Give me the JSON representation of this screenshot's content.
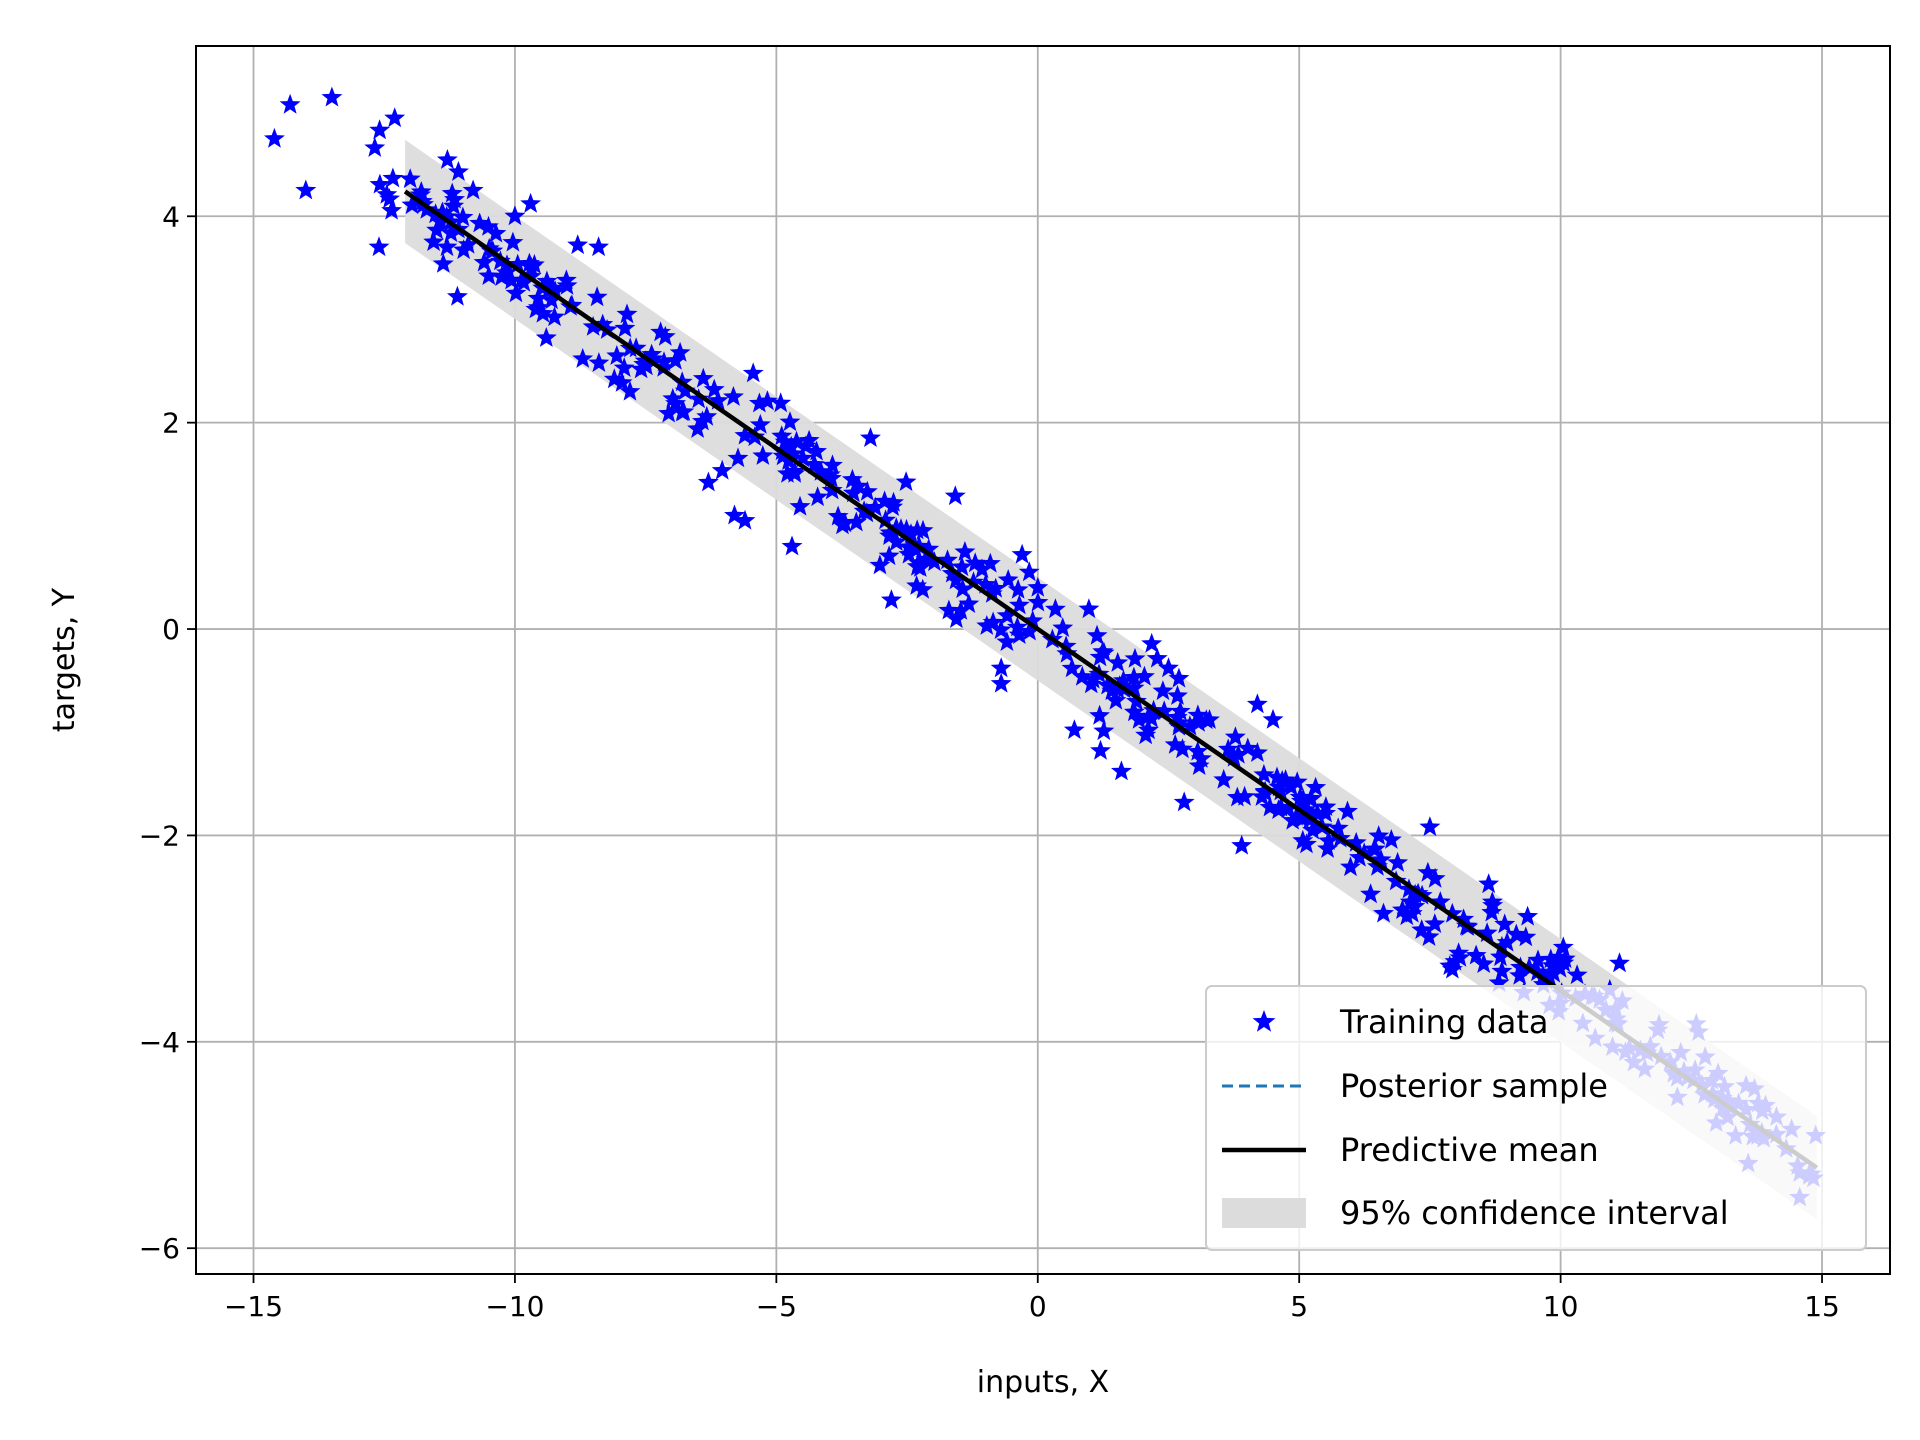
{
  "chart_data": {
    "type": "scatter",
    "title": "",
    "xlabel": "inputs, X",
    "ylabel": "targets, Y",
    "xlim": [
      -16.1,
      16.3
    ],
    "ylim": [
      -6.25,
      5.65
    ],
    "xticks": [
      -15,
      -10,
      -5,
      0,
      5,
      10,
      15
    ],
    "yticks": [
      -6,
      -4,
      -2,
      0,
      2,
      4
    ],
    "xtick_labels": [
      "−15",
      "−10",
      "−5",
      "0",
      "5",
      "10",
      "15"
    ],
    "ytick_labels": [
      "−6",
      "−4",
      "−2",
      "0",
      "2",
      "4"
    ],
    "grid": true,
    "legend_position": "lower-right",
    "colors": {
      "training": "#0000ff",
      "posterior": "#1f77b4",
      "mean": "#000000",
      "interval": "#dcdcdc",
      "grid": "#b0b0b0"
    },
    "series": [
      {
        "name": "Training data",
        "type": "scatter",
        "marker": "star",
        "cluster_points": [
          [
            -14.6,
            4.75
          ],
          [
            -14.3,
            5.08
          ],
          [
            -14.0,
            4.25
          ],
          [
            -13.5,
            5.15
          ],
          [
            -12.3,
            4.95
          ],
          [
            -12.6,
            3.7
          ],
          [
            -11.3,
            3.7
          ],
          [
            -11.1,
            3.22
          ],
          [
            -10.5,
            3.42
          ],
          [
            -9.4,
            2.82
          ],
          [
            -8.1,
            2.42
          ],
          [
            -7.8,
            2.3
          ],
          [
            -6.8,
            2.1
          ],
          [
            -6.3,
            1.42
          ],
          [
            -5.8,
            1.1
          ],
          [
            -5.6,
            1.05
          ],
          [
            -4.7,
            0.8
          ],
          [
            -3.2,
            1.85
          ],
          [
            -2.8,
            0.28
          ],
          [
            -2.2,
            0.38
          ],
          [
            -1.7,
            0.18
          ],
          [
            -0.7,
            -0.38
          ],
          [
            -0.7,
            -0.53
          ],
          [
            -0.3,
            0.72
          ],
          [
            0.7,
            -0.98
          ],
          [
            1.2,
            -1.18
          ],
          [
            1.6,
            -1.38
          ],
          [
            2.8,
            -1.68
          ],
          [
            2.7,
            -0.48
          ],
          [
            2.5,
            -0.38
          ],
          [
            4.2,
            -0.73
          ],
          [
            4.5,
            -0.88
          ],
          [
            3.9,
            -2.1
          ],
          [
            7.5,
            -1.92
          ],
          [
            7.6,
            -2.42
          ],
          [
            8.2,
            -2.88
          ],
          [
            8.7,
            -2.68
          ],
          [
            -10.0,
            4.0
          ],
          [
            -9.7,
            4.12
          ],
          [
            -8.8,
            3.72
          ],
          [
            -8.4,
            3.7
          ],
          [
            -11.2,
            4.22
          ],
          [
            -10.8,
            4.25
          ],
          [
            0.0,
            0.4
          ]
        ],
        "trend": {
          "x_start": -12.7,
          "x_end": 14.9,
          "count": 470,
          "slope": -0.35,
          "intercept": 0.0,
          "noise_sd": 0.22
        }
      },
      {
        "name": "Posterior sample",
        "type": "line",
        "style": "dashed",
        "x": [
          -12.1,
          14.9
        ],
        "y": [
          4.24,
          -5.22
        ]
      },
      {
        "name": "Predictive mean",
        "type": "line",
        "style": "solid",
        "x": [
          -12.1,
          14.9
        ],
        "y": [
          4.24,
          -5.22
        ]
      },
      {
        "name": "95% confidence interval",
        "type": "band",
        "x": [
          -12.1,
          14.9
        ],
        "lower": [
          3.74,
          -5.72
        ],
        "upper": [
          4.74,
          -4.72
        ]
      }
    ]
  }
}
